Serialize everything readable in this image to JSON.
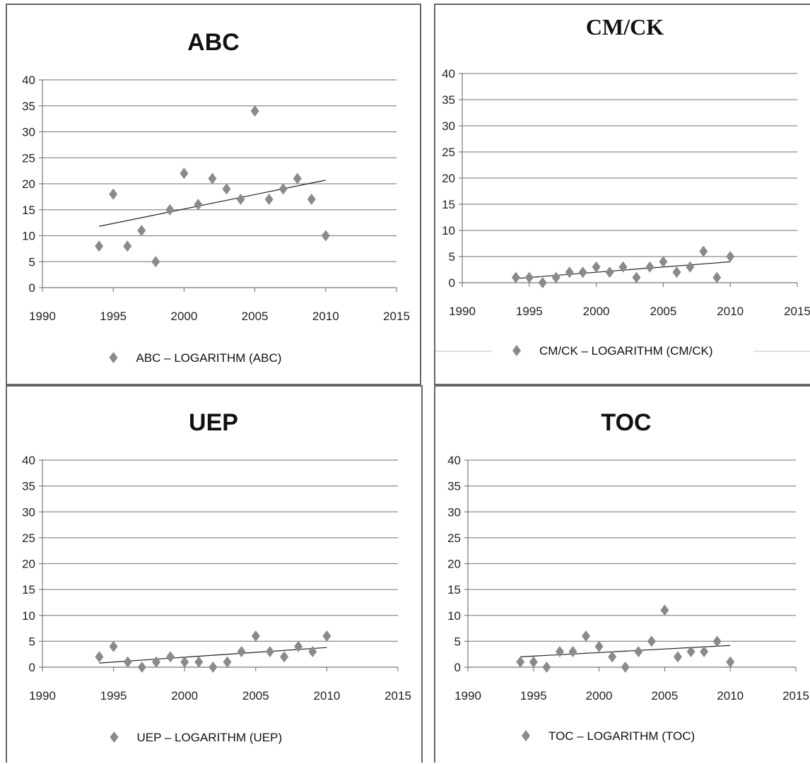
{
  "chart_data": [
    {
      "type": "scatter",
      "title": "ABC",
      "xlim": [
        1990,
        2015
      ],
      "ylim": [
        0,
        40
      ],
      "xticks": [
        "1990",
        "1995",
        "2000",
        "2005",
        "2010",
        "2015"
      ],
      "yticks": [
        "0",
        "5",
        "10",
        "15",
        "20",
        "25",
        "30",
        "35",
        "40"
      ],
      "grid": true,
      "legend": "bottom",
      "legend_label": "ABC – LOGARITHM (ABC)",
      "marker_color": "#8a8a8a",
      "series": [
        {
          "name": "ABC",
          "x": [
            1994,
            1995,
            1996,
            1997,
            1998,
            1999,
            2000,
            2001,
            2002,
            2003,
            2004,
            2005,
            2006,
            2007,
            2008,
            2009,
            2010
          ],
          "y": [
            8,
            18,
            8,
            11,
            5,
            15,
            22,
            16,
            21,
            19,
            17,
            34,
            17,
            19,
            21,
            17,
            10
          ]
        }
      ],
      "trendline": {
        "x": [
          1994,
          2010
        ],
        "y": [
          11.8,
          20.7
        ]
      }
    },
    {
      "type": "scatter",
      "title": "CM/CK",
      "xlim": [
        1990,
        2015
      ],
      "ylim": [
        0,
        40
      ],
      "xticks": [
        "1990",
        "1995",
        "2000",
        "2005",
        "2010",
        "2015"
      ],
      "yticks": [
        "0",
        "5",
        "10",
        "15",
        "20",
        "25",
        "30",
        "35",
        "40"
      ],
      "grid": true,
      "legend": "bottom",
      "legend_label": "CM/CK – LOGARITHM (CM/CK)",
      "marker_color": "#8a8a8a",
      "series": [
        {
          "name": "CM/CK",
          "x": [
            1994,
            1995,
            1996,
            1997,
            1998,
            1999,
            2000,
            2001,
            2002,
            2003,
            2004,
            2005,
            2006,
            2007,
            2008,
            2009,
            2010
          ],
          "y": [
            1,
            1,
            0,
            1,
            2,
            2,
            3,
            2,
            3,
            1,
            3,
            4,
            2,
            3,
            6,
            1,
            5
          ]
        }
      ],
      "trendline": {
        "x": [
          1994,
          2010
        ],
        "y": [
          0.8,
          4.0
        ]
      }
    },
    {
      "type": "scatter",
      "title": "UEP",
      "xlim": [
        1990,
        2015
      ],
      "ylim": [
        0,
        40
      ],
      "xticks": [
        "1990",
        "1995",
        "2000",
        "2005",
        "2010",
        "2015"
      ],
      "yticks": [
        "0",
        "5",
        "10",
        "15",
        "20",
        "25",
        "30",
        "35",
        "40"
      ],
      "grid": true,
      "legend": "bottom",
      "legend_label": "UEP – LOGARITHM (UEP)",
      "marker_color": "#8a8a8a",
      "series": [
        {
          "name": "UEP",
          "x": [
            1994,
            1995,
            1996,
            1997,
            1998,
            1999,
            2000,
            2001,
            2002,
            2003,
            2004,
            2005,
            2006,
            2007,
            2008,
            2009,
            2010
          ],
          "y": [
            2,
            4,
            1,
            0,
            1,
            2,
            1,
            1,
            0,
            1,
            3,
            6,
            3,
            2,
            4,
            3,
            6
          ]
        }
      ],
      "trendline": {
        "x": [
          1994,
          2010
        ],
        "y": [
          0.8,
          3.8
        ]
      }
    },
    {
      "type": "scatter",
      "title": "TOC",
      "xlim": [
        1990,
        2015
      ],
      "ylim": [
        0,
        40
      ],
      "xticks": [
        "1990",
        "1995",
        "2000",
        "2005",
        "2010",
        "2015"
      ],
      "yticks": [
        "0",
        "5",
        "10",
        "15",
        "20",
        "25",
        "30",
        "35",
        "40"
      ],
      "grid": true,
      "legend": "bottom",
      "legend_label": "TOC – LOGARITHM (TOC)",
      "marker_color": "#8a8a8a",
      "series": [
        {
          "name": "TOC",
          "x": [
            1994,
            1995,
            1996,
            1997,
            1998,
            1999,
            2000,
            2001,
            2002,
            2003,
            2004,
            2005,
            2006,
            2007,
            2008,
            2009,
            2010
          ],
          "y": [
            1,
            1,
            0,
            3,
            3,
            6,
            4,
            2,
            0,
            3,
            5,
            11,
            2,
            3,
            3,
            5,
            1
          ]
        }
      ],
      "trendline": {
        "x": [
          1994,
          2010
        ],
        "y": [
          2.0,
          4.2
        ]
      }
    }
  ]
}
